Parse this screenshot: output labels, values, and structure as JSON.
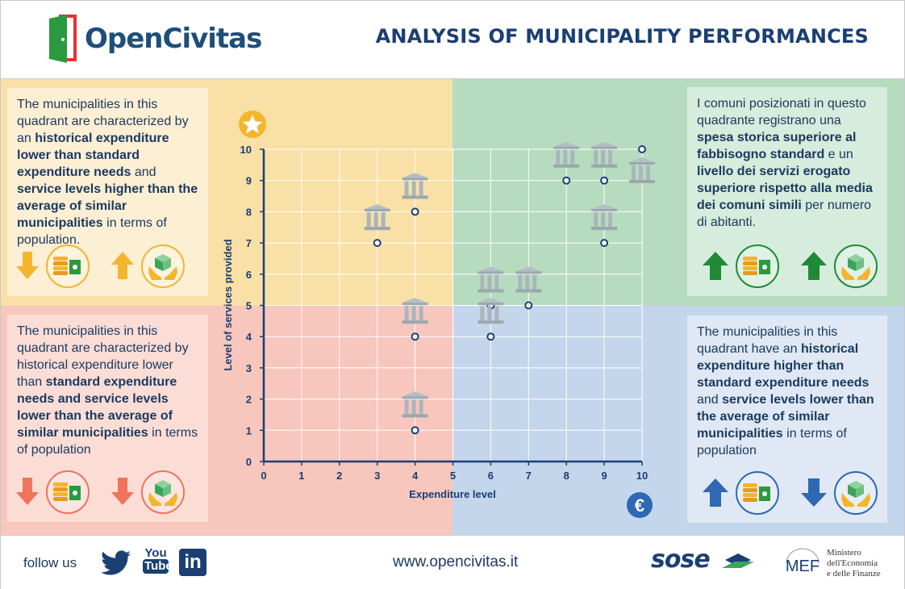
{
  "header": {
    "logo_text": "OpenCivitas",
    "title": "ANALYSIS OF MUNICIPALITY PERFORMANCES"
  },
  "panels": {
    "top_left": {
      "segments": [
        {
          "t": "The municipalities in this quadrant are characterized by an ",
          "b": false
        },
        {
          "t": "historical expenditure lower than standard expenditure needs",
          "b": true
        },
        {
          "t": " and ",
          "b": false
        },
        {
          "t": "service levels higher than the average of similar municipalities",
          "b": true
        },
        {
          "t": " in terms of population.",
          "b": false
        }
      ],
      "expenditure_trend": "down",
      "service_trend": "up"
    },
    "top_right": {
      "segments": [
        {
          "t": "I comuni posizionati in questo quadrante registrano una ",
          "b": false
        },
        {
          "t": "spesa storica superiore al fabbisogno standard",
          "b": true
        },
        {
          "t": " e un ",
          "b": false
        },
        {
          "t": "livello dei servizi erogato superiore rispetto alla media dei comuni simili",
          "b": true
        },
        {
          "t": " per numero di abitanti.",
          "b": false
        }
      ],
      "expenditure_trend": "up",
      "service_trend": "up"
    },
    "bottom_left": {
      "segments": [
        {
          "t": "The municipalities in this quadrant are characterized by historical expenditure lower than ",
          "b": false
        },
        {
          "t": "standard expenditure needs and service levels lower than the average of similar municipalities",
          "b": true
        },
        {
          "t": " in terms of population",
          "b": false
        }
      ],
      "expenditure_trend": "down",
      "service_trend": "down"
    },
    "bottom_right": {
      "segments": [
        {
          "t": "The municipalities in this quadrant have an ",
          "b": false
        },
        {
          "t": "historical expenditure higher than standard expenditure needs",
          "b": true
        },
        {
          "t": " and ",
          "b": false
        },
        {
          "t": "service levels lower than the average of similar municipalities",
          "b": true
        },
        {
          "t": " in terms of population",
          "b": false
        }
      ],
      "expenditure_trend": "up",
      "service_trend": "down"
    }
  },
  "colors": {
    "yellow_quadrant": "#f9e0a6",
    "green_quadrant": "#b7dbbf",
    "red_quadrant": "#f7c6bd",
    "blue_quadrant": "#c4d6ec",
    "yellow_accent": "#f3b52b",
    "green_accent": "#1f8a35",
    "red_accent": "#f0735d",
    "blue_accent": "#2f68b3",
    "navy": "#1a3f73"
  },
  "chart_data": {
    "type": "scatter",
    "xlabel": "Expenditure level",
    "ylabel": "Level of services provided",
    "xlim": [
      0,
      10
    ],
    "ylim": [
      0,
      10
    ],
    "xticks": [
      "0",
      "1",
      "2",
      "3",
      "4",
      "5",
      "6",
      "7",
      "8",
      "9",
      "10"
    ],
    "yticks": [
      "0",
      "1",
      "2",
      "3",
      "4",
      "5",
      "6",
      "7",
      "8",
      "9",
      "10"
    ],
    "grid": true,
    "quadrant_split": {
      "x": 5,
      "y": 5
    },
    "points": [
      {
        "x": 3,
        "y": 7
      },
      {
        "x": 4,
        "y": 8
      },
      {
        "x": 4,
        "y": 4
      },
      {
        "x": 4,
        "y": 1
      },
      {
        "x": 6,
        "y": 5
      },
      {
        "x": 6,
        "y": 4
      },
      {
        "x": 7,
        "y": 5
      },
      {
        "x": 8,
        "y": 9
      },
      {
        "x": 9,
        "y": 9
      },
      {
        "x": 9,
        "y": 7
      },
      {
        "x": 10,
        "y": 10
      }
    ],
    "y_axis_icon": "star-icon",
    "x_axis_icon": "euro-icon"
  },
  "footer": {
    "follow_label": "follow us",
    "social": [
      "twitter-icon",
      "youtube-icon",
      "linkedin-icon"
    ],
    "youtube_label_1": "You",
    "youtube_label_2": "Tube",
    "linkedin_label": "in",
    "url": "www.opencivitas.it",
    "sose_label": "sose",
    "mef_label": "MEF",
    "mef_lines": [
      "Ministero",
      "dell'Economia",
      "e delle Finanze"
    ]
  }
}
